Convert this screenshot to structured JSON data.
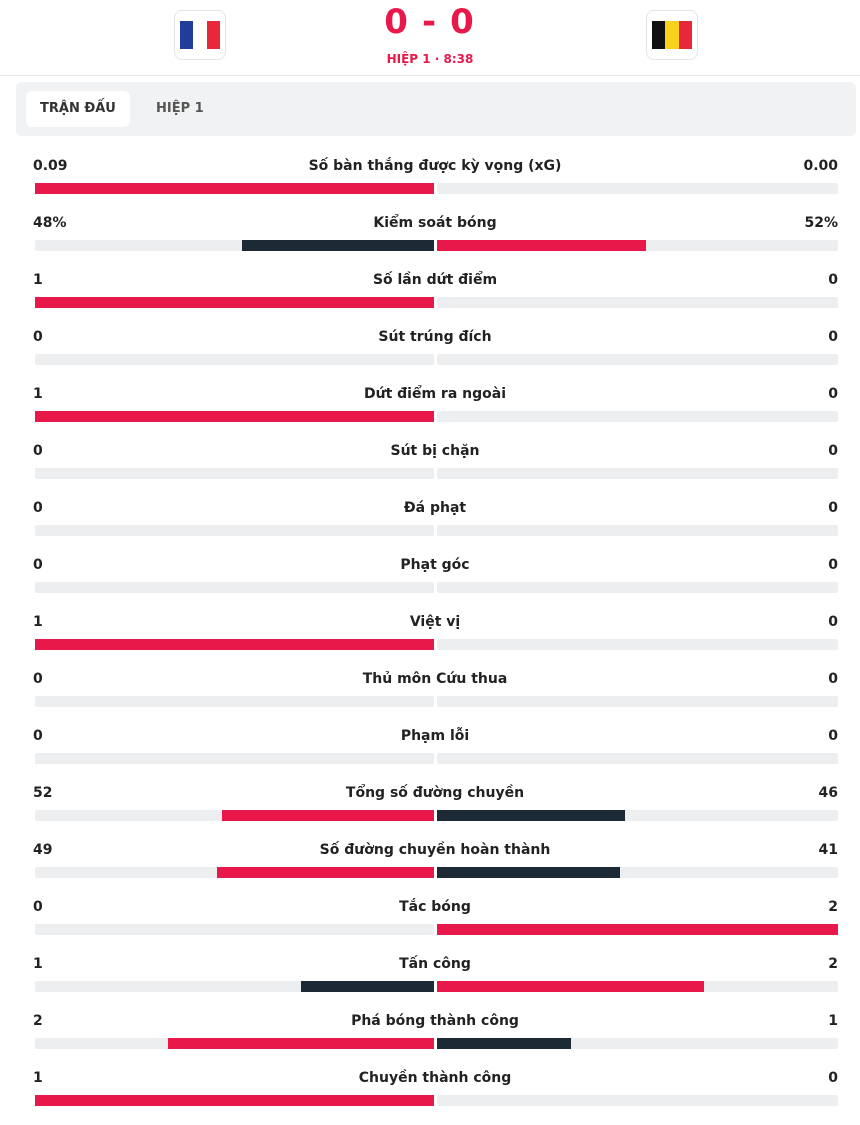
{
  "header": {
    "score_home": 0,
    "score_separator": "-",
    "score_away": 0,
    "status": "HIỆP 1 · 8:38"
  },
  "tabs": [
    "TRẬN ĐẤU",
    "HIỆP 1"
  ],
  "stats": [
    {
      "name": "Số bàn thắng được kỳ vọng (xG)",
      "home": 0.09,
      "away": 0,
      "away_label": "0.00"
    },
    {
      "name": "Kiểm soát bóng",
      "home": 48,
      "away": 52,
      "home_label": "48%",
      "away_label": "52%"
    },
    {
      "name": "Số lần dứt điểm",
      "home": 1,
      "away": 0
    },
    {
      "name": "Sút trúng đích",
      "home": 0,
      "away": 0
    },
    {
      "name": "Dứt điểm ra ngoài",
      "home": 1,
      "away": 0
    },
    {
      "name": "Sút bị chặn",
      "home": 0,
      "away": 0
    },
    {
      "name": "Đá phạt",
      "home": 0,
      "away": 0
    },
    {
      "name": "Phạt góc",
      "home": 0,
      "away": 0
    },
    {
      "name": "Việt vị",
      "home": 1,
      "away": 0
    },
    {
      "name": "Thủ môn Cứu thua",
      "home": 0,
      "away": 0
    },
    {
      "name": "Phạm lỗi",
      "home": 0,
      "away": 0
    },
    {
      "name": "Tổng số đường chuyền",
      "home": 52,
      "away": 46
    },
    {
      "name": "Số đường chuyền hoàn thành",
      "home": 49,
      "away": 41
    },
    {
      "name": "Tắc bóng",
      "home": 0,
      "away": 2
    },
    {
      "name": "Tấn công",
      "home": 1,
      "away": 2
    },
    {
      "name": "Phá bóng thành công",
      "home": 2,
      "away": 1
    },
    {
      "name": "Chuyền thành công",
      "home": 1,
      "away": 0
    }
  ]
}
